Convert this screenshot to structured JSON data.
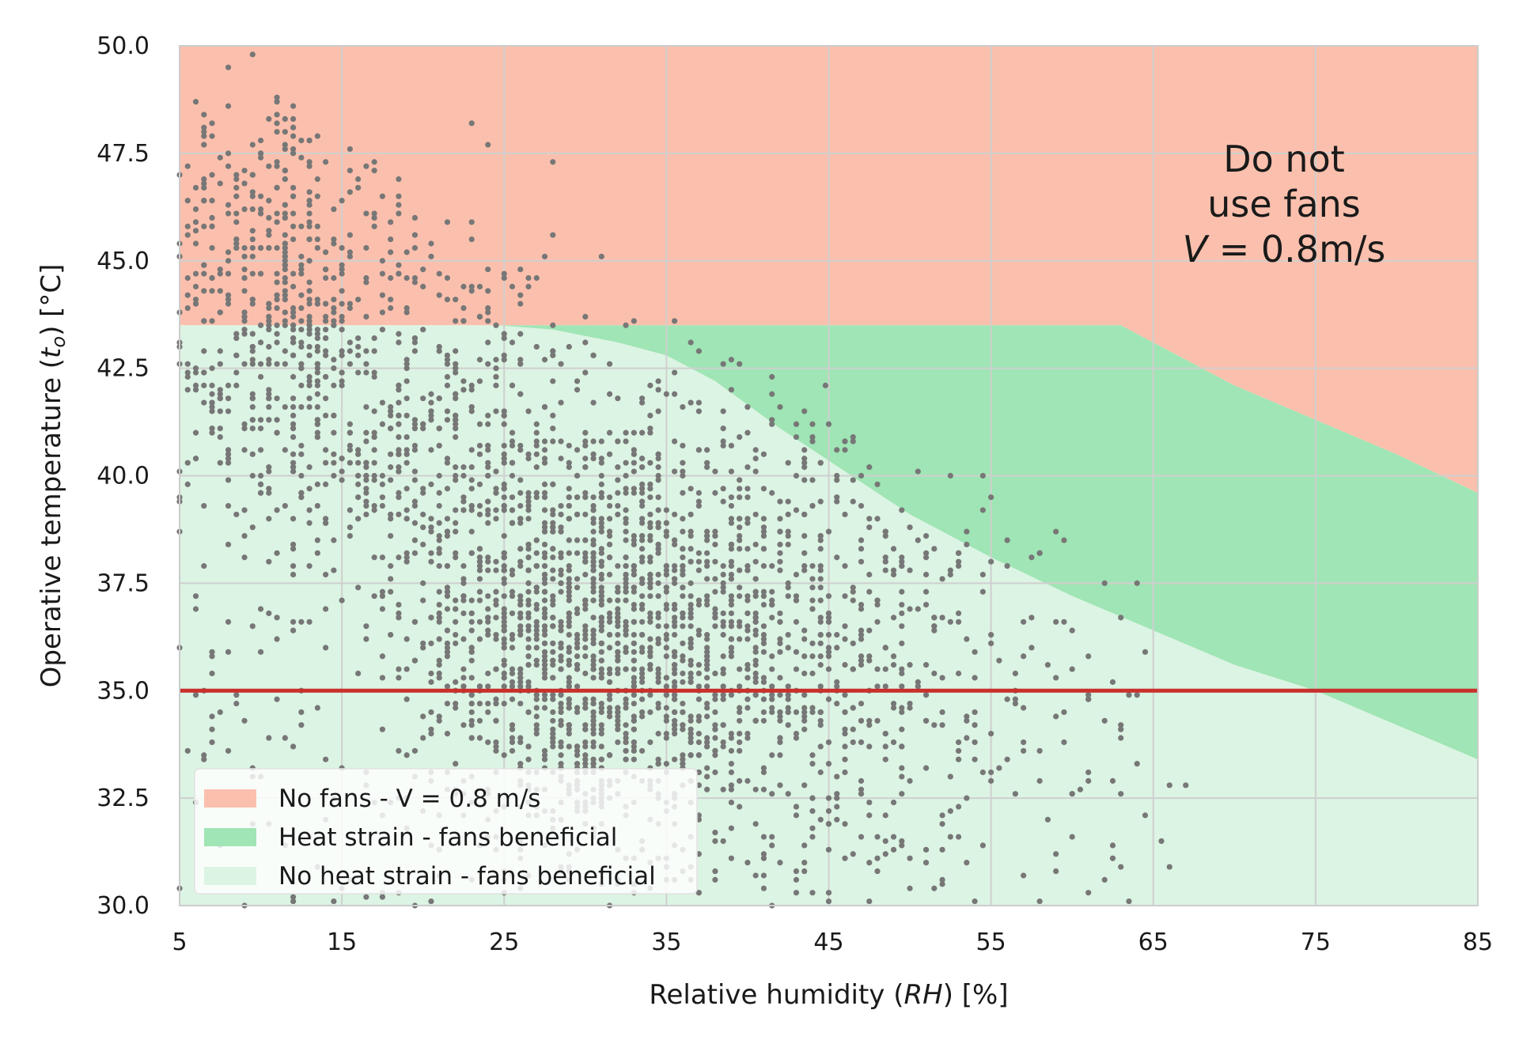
{
  "chart_data": {
    "type": "area",
    "title": "",
    "xlabel_parts": [
      "Relative humidity (",
      "RH",
      ") [%]"
    ],
    "ylabel_parts": [
      "Operative temperature (",
      "t",
      "o",
      ") [°C]"
    ],
    "xlim": [
      5,
      85
    ],
    "ylim": [
      30,
      50
    ],
    "xticks": [
      "5",
      "15",
      "25",
      "35",
      "45",
      "55",
      "65",
      "75",
      "85"
    ],
    "yticks": [
      "30.0",
      "32.5",
      "35.0",
      "37.5",
      "40.0",
      "42.5",
      "45.0",
      "47.5",
      "50.0"
    ],
    "grid": true,
    "legend_position": "lower-left",
    "annotation_lines": [
      "Do not",
      "use fans"
    ],
    "annotation_formula": [
      "V",
      " = 0.8m/s"
    ],
    "threshold_line": {
      "y": 35.0,
      "color": "#c8302c"
    },
    "regions": [
      {
        "name": "No fans - V = 0.8 m/s",
        "color": "#fbc0ad",
        "upper_bound": [
          [
            5,
            50
          ],
          [
            85,
            50
          ]
        ],
        "lower_bound": [
          [
            5,
            43.5
          ],
          [
            63,
            43.5
          ],
          [
            64.5,
            43.2
          ],
          [
            66,
            42.9
          ],
          [
            70,
            42.1
          ],
          [
            75,
            41.3
          ],
          [
            80,
            40.5
          ],
          [
            85,
            39.6
          ]
        ]
      },
      {
        "name": "Heat strain - fans beneficial",
        "color": "#a0e5b5",
        "upper_bound": [
          [
            5,
            43.5
          ],
          [
            63,
            43.5
          ],
          [
            64.5,
            43.2
          ],
          [
            66,
            42.9
          ],
          [
            70,
            42.1
          ],
          [
            75,
            41.3
          ],
          [
            80,
            40.5
          ],
          [
            85,
            39.6
          ]
        ],
        "lower_bound": [
          [
            5,
            43.5
          ],
          [
            24.5,
            43.5
          ],
          [
            28,
            43.4
          ],
          [
            32,
            43.1
          ],
          [
            35,
            42.8
          ],
          [
            38,
            42.2
          ],
          [
            42,
            41.1
          ],
          [
            46,
            40.1
          ],
          [
            50,
            39.1
          ],
          [
            55,
            38.1
          ],
          [
            60,
            37.2
          ],
          [
            65,
            36.4
          ],
          [
            70,
            35.6
          ],
          [
            75,
            35.0
          ],
          [
            80,
            34.2
          ],
          [
            85,
            33.4
          ]
        ]
      },
      {
        "name": "No heat strain - fans beneficial",
        "color": "#dcf4e3",
        "upper_bound": [
          [
            5,
            43.5
          ],
          [
            24.5,
            43.5
          ],
          [
            28,
            43.4
          ],
          [
            32,
            43.1
          ],
          [
            35,
            42.8
          ],
          [
            38,
            42.2
          ],
          [
            42,
            41.1
          ],
          [
            46,
            40.1
          ],
          [
            50,
            39.1
          ],
          [
            55,
            38.1
          ],
          [
            60,
            37.2
          ],
          [
            65,
            36.4
          ],
          [
            70,
            35.6
          ],
          [
            75,
            35.0
          ],
          [
            80,
            34.2
          ],
          [
            85,
            33.4
          ]
        ],
        "lower_bound": [
          [
            5,
            30
          ],
          [
            85,
            30
          ]
        ]
      }
    ],
    "scatter": {
      "color": "#777777",
      "point_count": 3200,
      "points": [
        [
          7,
          48.2
        ],
        [
          8,
          49.5
        ],
        [
          9.5,
          49.8
        ],
        [
          11,
          48.8
        ],
        [
          12,
          48.6
        ],
        [
          13,
          47.8
        ],
        [
          10,
          47.4
        ],
        [
          8,
          47.2
        ],
        [
          7,
          46.4
        ],
        [
          9,
          46.8
        ],
        [
          11,
          46.1
        ],
        [
          13,
          45.5
        ],
        [
          15,
          45.3
        ],
        [
          17,
          46.0
        ],
        [
          18,
          45.2
        ],
        [
          20,
          44.8
        ],
        [
          21,
          44.2
        ],
        [
          23,
          44.3
        ],
        [
          24,
          43.9
        ],
        [
          26,
          44.2
        ],
        [
          27,
          44.6
        ],
        [
          28,
          45.6
        ],
        [
          31,
          45.1
        ],
        [
          23,
          48.2
        ],
        [
          24,
          47.7
        ],
        [
          28,
          47.3
        ],
        [
          6,
          44.7
        ],
        [
          8,
          44.2
        ],
        [
          12,
          43.9
        ],
        [
          14,
          43.6
        ],
        [
          16,
          44.1
        ],
        [
          19,
          43.8
        ],
        [
          35.5,
          42.4
        ],
        [
          44.8,
          42.1
        ],
        [
          46,
          40.8
        ],
        [
          54.5,
          40.0
        ],
        [
          55,
          38.0
        ],
        [
          56,
          37.9
        ],
        [
          57,
          36.6
        ],
        [
          59,
          36.6
        ],
        [
          61,
          35.8
        ],
        [
          58.5,
          35.6
        ],
        [
          63,
          34.2
        ],
        [
          64,
          33.3
        ],
        [
          66,
          32.8
        ],
        [
          67,
          32.8
        ],
        [
          65.5,
          31.5
        ],
        [
          66,
          30.9
        ],
        [
          62,
          30.6
        ],
        [
          59,
          31.2
        ],
        [
          52,
          30.6
        ],
        [
          48,
          30.8
        ],
        [
          45,
          30.3
        ],
        [
          41,
          30.4
        ],
        [
          38,
          30.6
        ],
        [
          35,
          30.9
        ],
        [
          32,
          30.5
        ],
        [
          29,
          30.8
        ],
        [
          26,
          30.4
        ],
        [
          23,
          30.6
        ],
        [
          21,
          31.3
        ],
        [
          19,
          31.8
        ],
        [
          17,
          32.4
        ],
        [
          14,
          33.4
        ],
        [
          12,
          33.7
        ],
        [
          9,
          34.3
        ],
        [
          7,
          35.4
        ],
        [
          6,
          36.9
        ],
        [
          8,
          38.4
        ],
        [
          10,
          39.6
        ],
        [
          11,
          41.0
        ],
        [
          13,
          42.2
        ],
        [
          15,
          40.4
        ],
        [
          17,
          39.2
        ],
        [
          19,
          38.1
        ],
        [
          21,
          37.3
        ],
        [
          23,
          36.8
        ],
        [
          25,
          36.2
        ],
        [
          27,
          35.6
        ],
        [
          29,
          35.2
        ],
        [
          31,
          34.7
        ],
        [
          33,
          34.3
        ],
        [
          35,
          33.9
        ],
        [
          37,
          33.5
        ],
        [
          39,
          33.1
        ],
        [
          41,
          32.7
        ],
        [
          43,
          32.3
        ],
        [
          45,
          31.9
        ],
        [
          47,
          31.6
        ],
        [
          49,
          31.3
        ],
        [
          51,
          31.0
        ],
        [
          53,
          32.3
        ],
        [
          55,
          32.9
        ],
        [
          57,
          33.6
        ],
        [
          59,
          34.4
        ],
        [
          61,
          33.1
        ],
        [
          63,
          32.6
        ],
        [
          50,
          34.6
        ],
        [
          48,
          35.5
        ],
        [
          46,
          36.5
        ],
        [
          44,
          37.4
        ],
        [
          42,
          38.2
        ],
        [
          40,
          39.0
        ],
        [
          38,
          39.6
        ],
        [
          36,
          40.3
        ],
        [
          34,
          41.1
        ],
        [
          32,
          41.8
        ],
        [
          30,
          42.4
        ],
        [
          28,
          42.9
        ],
        [
          26,
          43.3
        ],
        [
          24,
          42.6
        ],
        [
          22,
          41.9
        ],
        [
          20,
          41.2
        ],
        [
          18,
          40.5
        ],
        [
          16,
          39.8
        ],
        [
          14,
          38.9
        ],
        [
          12,
          37.9
        ],
        [
          10,
          36.9
        ],
        [
          8,
          35.9
        ],
        [
          6,
          34.9
        ],
        [
          5.5,
          33.6
        ],
        [
          7.5,
          32.6
        ],
        [
          9.5,
          31.9
        ],
        [
          11.5,
          31.4
        ],
        [
          13.5,
          30.9
        ],
        [
          15.5,
          30.6
        ],
        [
          17.5,
          30.3
        ],
        [
          27,
          38.5
        ],
        [
          29,
          37.8
        ],
        [
          31,
          37.2
        ],
        [
          33,
          36.6
        ],
        [
          35,
          36.0
        ],
        [
          37,
          35.4
        ],
        [
          39,
          34.9
        ],
        [
          41,
          34.3
        ],
        [
          43,
          33.9
        ],
        [
          45,
          33.3
        ],
        [
          47,
          32.9
        ],
        [
          49,
          32.4
        ],
        [
          30,
          39.5
        ],
        [
          32,
          39.1
        ],
        [
          34,
          38.6
        ],
        [
          36,
          38.1
        ],
        [
          38,
          37.6
        ],
        [
          40,
          37.1
        ],
        [
          42,
          36.6
        ],
        [
          44,
          36.1
        ],
        [
          46,
          35.6
        ],
        [
          48,
          35.1
        ],
        [
          50,
          34.7
        ],
        [
          52,
          34.2
        ],
        [
          54,
          33.8
        ],
        [
          56,
          33.4
        ],
        [
          58,
          32.9
        ],
        [
          60,
          32.6
        ],
        [
          26,
          39.9
        ],
        [
          24,
          39.4
        ],
        [
          22,
          38.9
        ],
        [
          20,
          38.4
        ],
        [
          18,
          37.9
        ],
        [
          16,
          37.4
        ],
        [
          14,
          36.9
        ],
        [
          12,
          36.4
        ],
        [
          10,
          35.9
        ],
        [
          26,
          36.8
        ],
        [
          27,
          36.3
        ],
        [
          28,
          35.9
        ],
        [
          29,
          36.5
        ],
        [
          30,
          35.8
        ],
        [
          31,
          36.1
        ],
        [
          32,
          35.5
        ],
        [
          33,
          35.9
        ],
        [
          28,
          37.1
        ],
        [
          30,
          37.0
        ],
        [
          32,
          36.9
        ],
        [
          34,
          36.8
        ],
        [
          25,
          37.5
        ],
        [
          27,
          37.4
        ],
        [
          29,
          37.3
        ],
        [
          31,
          37.6
        ],
        [
          33,
          37.7
        ],
        [
          35,
          37.8
        ],
        [
          37,
          38.0
        ],
        [
          39,
          38.4
        ],
        [
          41,
          38.8
        ],
        [
          43,
          39.2
        ],
        [
          45,
          38.7
        ],
        [
          47,
          38.3
        ],
        [
          49,
          37.8
        ],
        [
          51,
          37.3
        ],
        [
          53,
          36.8
        ],
        [
          55,
          36.3
        ],
        [
          57,
          35.8
        ],
        [
          59,
          35.3
        ],
        [
          61,
          34.8
        ],
        [
          62,
          34.3
        ]
      ]
    }
  }
}
